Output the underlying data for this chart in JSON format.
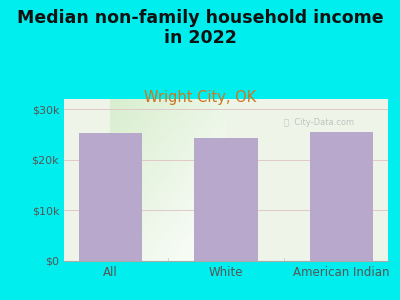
{
  "categories": [
    "All",
    "White",
    "American Indian"
  ],
  "values": [
    25200,
    24200,
    25400
  ],
  "bar_color": "#b8a8cc",
  "title_line1": "Median non-family household income",
  "title_line2": "in 2022",
  "subtitle": "Wright City, OK",
  "background_color": "#00EEEE",
  "plot_bg_color": "#e8f0e0",
  "title_fontsize": 12.5,
  "subtitle_fontsize": 10.5,
  "subtitle_color": "#cc7722",
  "title_color": "#111111",
  "yticks": [
    0,
    10000,
    20000,
    30000
  ],
  "ytick_labels": [
    "$0",
    "$10k",
    "$20k",
    "$30k"
  ],
  "ylim": [
    0,
    32000
  ],
  "tick_color": "#555555",
  "grid_color": "#e0c8c8",
  "axis_label_color": "#555555",
  "watermark": "City-Data.com"
}
